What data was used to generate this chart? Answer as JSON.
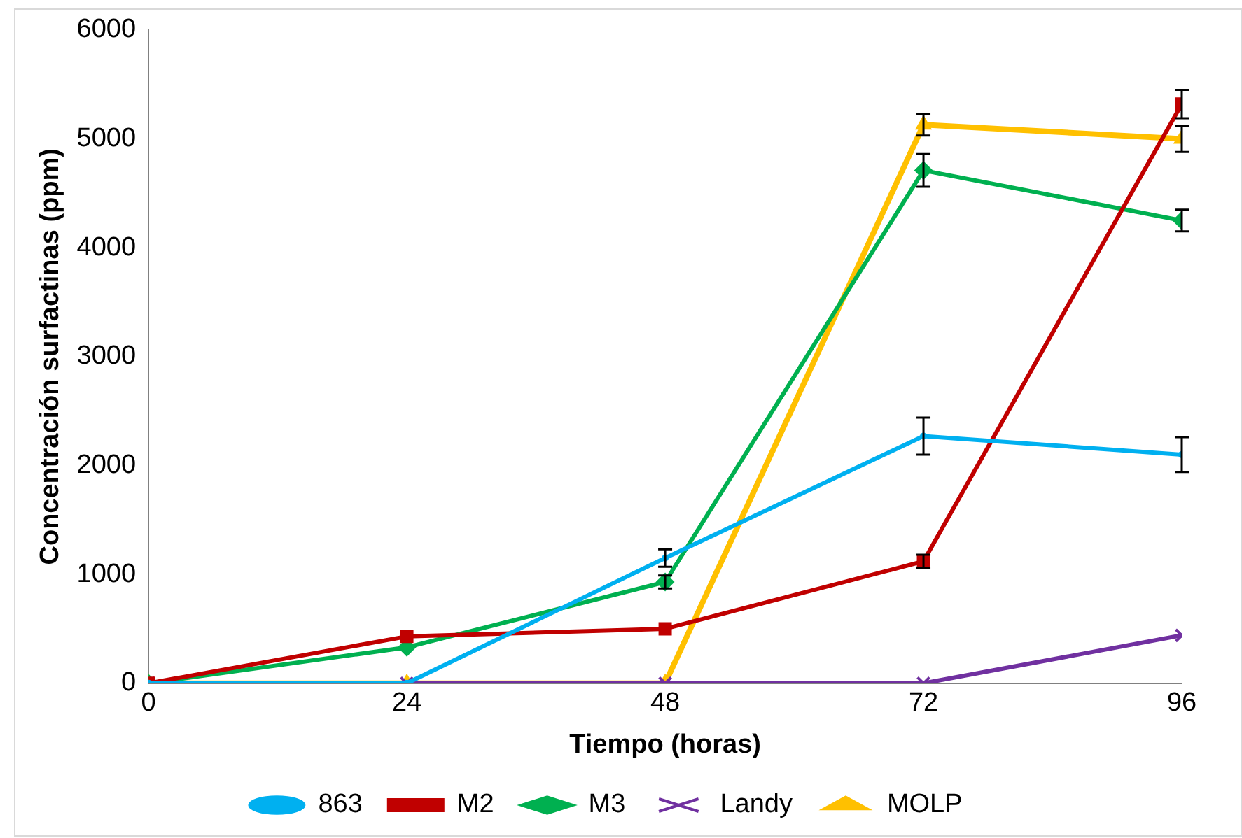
{
  "chart_data": {
    "type": "line",
    "xlabel": "Tiempo (horas)",
    "ylabel": "Concentración surfactinas (ppm)",
    "x": [
      0,
      24,
      48,
      72,
      96
    ],
    "xlim": [
      0,
      96
    ],
    "xticks": [
      0,
      24,
      48,
      72,
      96
    ],
    "ylim": [
      0,
      6000
    ],
    "yticks": [
      0,
      1000,
      2000,
      3000,
      4000,
      5000,
      6000
    ],
    "grid": false,
    "legend": "bottom",
    "series": [
      {
        "name": "863",
        "color": "#00b0f0",
        "marker": "circle",
        "values": [
          0,
          0,
          1150,
          2270,
          2100
        ],
        "errors": [
          null,
          null,
          80,
          170,
          160
        ]
      },
      {
        "name": "M2",
        "color": "#c00000",
        "marker": "square",
        "values": [
          0,
          430,
          500,
          1120,
          5320
        ],
        "errors": [
          null,
          null,
          null,
          60,
          130
        ]
      },
      {
        "name": "M3",
        "color": "#00b050",
        "marker": "diamond",
        "values": [
          0,
          330,
          930,
          4710,
          4250
        ],
        "errors": [
          null,
          null,
          60,
          150,
          100
        ]
      },
      {
        "name": "Landy",
        "color": "#7030a0",
        "marker": "cross",
        "values": [
          0,
          0,
          0,
          0,
          440
        ]
      },
      {
        "name": "MOLP",
        "color": "#ffc000",
        "marker": "triangle",
        "values": [
          0,
          0,
          0,
          5130,
          5000
        ],
        "errors": [
          null,
          null,
          null,
          100,
          120
        ]
      }
    ]
  }
}
